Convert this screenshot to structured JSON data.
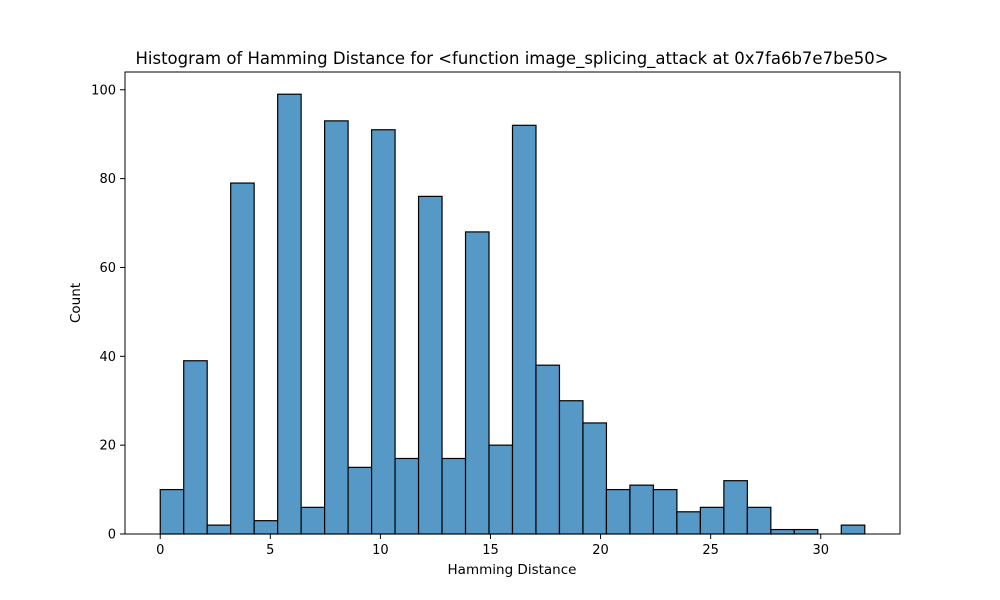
{
  "chart_data": {
    "type": "bar",
    "title": "Histogram of Hamming Distance for <function image_splicing_attack at 0x7fa6b7e7be50>",
    "xlabel": "Hamming Distance",
    "ylabel": "Count",
    "xlim": [
      -1.6,
      33.6
    ],
    "ylim": [
      0,
      104
    ],
    "xticks": [
      0,
      5,
      10,
      15,
      20,
      25,
      30
    ],
    "yticks": [
      0,
      20,
      40,
      60,
      80,
      100
    ],
    "bar_color": "#5799c6",
    "grid": false,
    "bins": [
      {
        "x0": 0.0,
        "x1": 1.0667,
        "count": 10
      },
      {
        "x0": 1.0667,
        "x1": 2.1333,
        "count": 39
      },
      {
        "x0": 2.1333,
        "x1": 3.2,
        "count": 2
      },
      {
        "x0": 3.2,
        "x1": 4.2667,
        "count": 79
      },
      {
        "x0": 4.2667,
        "x1": 5.3333,
        "count": 3
      },
      {
        "x0": 5.3333,
        "x1": 6.4,
        "count": 99
      },
      {
        "x0": 6.4,
        "x1": 7.4667,
        "count": 6
      },
      {
        "x0": 7.4667,
        "x1": 8.5333,
        "count": 93
      },
      {
        "x0": 8.5333,
        "x1": 9.6,
        "count": 15
      },
      {
        "x0": 9.6,
        "x1": 10.6667,
        "count": 91
      },
      {
        "x0": 10.6667,
        "x1": 11.7333,
        "count": 17
      },
      {
        "x0": 11.7333,
        "x1": 12.8,
        "count": 76
      },
      {
        "x0": 12.8,
        "x1": 13.8667,
        "count": 17
      },
      {
        "x0": 13.8667,
        "x1": 14.9333,
        "count": 68
      },
      {
        "x0": 14.9333,
        "x1": 16.0,
        "count": 20
      },
      {
        "x0": 16.0,
        "x1": 17.0667,
        "count": 92
      },
      {
        "x0": 17.0667,
        "x1": 18.1333,
        "count": 38
      },
      {
        "x0": 18.1333,
        "x1": 19.2,
        "count": 30
      },
      {
        "x0": 19.2,
        "x1": 20.2667,
        "count": 25
      },
      {
        "x0": 20.2667,
        "x1": 21.3333,
        "count": 10
      },
      {
        "x0": 21.3333,
        "x1": 22.4,
        "count": 11
      },
      {
        "x0": 22.4,
        "x1": 23.4667,
        "count": 10
      },
      {
        "x0": 23.4667,
        "x1": 24.5333,
        "count": 5
      },
      {
        "x0": 24.5333,
        "x1": 25.6,
        "count": 6
      },
      {
        "x0": 25.6,
        "x1": 26.6667,
        "count": 12
      },
      {
        "x0": 26.6667,
        "x1": 27.7333,
        "count": 6
      },
      {
        "x0": 27.7333,
        "x1": 28.8,
        "count": 1
      },
      {
        "x0": 28.8,
        "x1": 29.8667,
        "count": 1
      },
      {
        "x0": 29.8667,
        "x1": 30.9333,
        "count": 0
      },
      {
        "x0": 30.9333,
        "x1": 32.0,
        "count": 2
      }
    ]
  }
}
